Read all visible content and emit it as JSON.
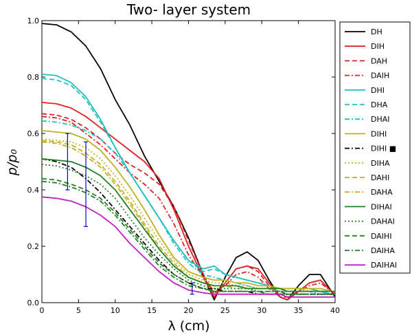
{
  "chart_data": {
    "type": "line",
    "title": "Two- layer system",
    "xlabel": "λ (cm)",
    "ylabel": "p/p₀",
    "xlim": [
      0,
      40
    ],
    "ylim": [
      0,
      1.0
    ],
    "xticks": [
      "0",
      "5",
      "10",
      "15",
      "20",
      "25",
      "30",
      "35",
      "40"
    ],
    "yticks": [
      "0.0",
      "0.2",
      "0.4",
      "0.6",
      "0.8",
      "1.0"
    ],
    "grid": false,
    "legend_position": "right (outside plot)",
    "x": [
      0,
      2,
      4,
      6,
      8,
      10,
      12,
      14,
      16,
      18,
      20,
      22,
      23.5,
      25,
      26.5,
      28,
      29.5,
      31,
      32.5,
      33.5,
      35,
      36.5,
      38,
      39.5,
      40
    ],
    "series": [
      {
        "name": "DH",
        "color": "#000000",
        "style": "solid",
        "values": [
          0.99,
          0.985,
          0.96,
          0.91,
          0.83,
          0.72,
          0.63,
          0.52,
          0.43,
          0.34,
          0.23,
          0.1,
          0.01,
          0.09,
          0.16,
          0.18,
          0.15,
          0.08,
          0.02,
          0.01,
          0.06,
          0.1,
          0.1,
          0.04,
          0.02
        ]
      },
      {
        "name": "DIH",
        "color": "#e02020",
        "style": "solid",
        "values": [
          0.71,
          0.705,
          0.69,
          0.66,
          0.62,
          0.58,
          0.54,
          0.5,
          0.44,
          0.33,
          0.2,
          0.09,
          0.02,
          0.07,
          0.12,
          0.13,
          0.12,
          0.07,
          0.02,
          0.01,
          0.04,
          0.07,
          0.08,
          0.04,
          0.03
        ]
      },
      {
        "name": "DAH",
        "color": "#e02020",
        "style": "dashed",
        "values": [
          0.67,
          0.665,
          0.65,
          0.62,
          0.58,
          0.53,
          0.49,
          0.46,
          0.42,
          0.34,
          0.22,
          0.1,
          0.03,
          0.07,
          0.12,
          0.13,
          0.11,
          0.06,
          0.02,
          0.01,
          0.04,
          0.07,
          0.08,
          0.04,
          0.03
        ]
      },
      {
        "name": "DAIH",
        "color": "#e02020",
        "style": "dashdot",
        "values": [
          0.66,
          0.655,
          0.64,
          0.6,
          0.56,
          0.51,
          0.46,
          0.42,
          0.37,
          0.28,
          0.17,
          0.09,
          0.04,
          0.06,
          0.1,
          0.11,
          0.09,
          0.05,
          0.02,
          0.02,
          0.04,
          0.06,
          0.07,
          0.04,
          0.03
        ]
      },
      {
        "name": "DHI",
        "color": "#20c0c0",
        "style": "solid",
        "values": [
          0.81,
          0.805,
          0.78,
          0.73,
          0.65,
          0.55,
          0.46,
          0.38,
          0.3,
          0.22,
          0.15,
          0.12,
          0.13,
          0.1,
          0.09,
          0.08,
          0.07,
          0.06,
          0.05,
          0.05,
          0.05,
          0.05,
          0.04,
          0.03,
          0.03
        ]
      },
      {
        "name": "DHA",
        "color": "#20c0c0",
        "style": "dashed",
        "values": [
          0.795,
          0.79,
          0.77,
          0.72,
          0.64,
          0.55,
          0.46,
          0.38,
          0.3,
          0.22,
          0.15,
          0.11,
          0.12,
          0.1,
          0.09,
          0.08,
          0.07,
          0.06,
          0.05,
          0.05,
          0.05,
          0.05,
          0.04,
          0.03,
          0.03
        ]
      },
      {
        "name": "DHAI",
        "color": "#20c0c0",
        "style": "dashdot",
        "values": [
          0.645,
          0.64,
          0.63,
          0.61,
          0.58,
          0.53,
          0.46,
          0.38,
          0.3,
          0.21,
          0.14,
          0.1,
          0.09,
          0.08,
          0.07,
          0.06,
          0.05,
          0.05,
          0.04,
          0.04,
          0.04,
          0.04,
          0.03,
          0.03,
          0.03
        ]
      },
      {
        "name": "DIHI",
        "color": "#c0b020",
        "style": "solid",
        "values": [
          0.61,
          0.605,
          0.6,
          0.58,
          0.54,
          0.48,
          0.41,
          0.33,
          0.24,
          0.16,
          0.11,
          0.09,
          0.08,
          0.08,
          0.07,
          0.07,
          0.06,
          0.06,
          0.05,
          0.05,
          0.05,
          0.05,
          0.05,
          0.04,
          0.04
        ]
      },
      {
        "name": "DIHI ■",
        "color": "#000000",
        "style": "dashdot",
        "values": [
          0.51,
          0.5,
          0.48,
          0.44,
          0.39,
          0.33,
          0.27,
          0.21,
          0.15,
          0.1,
          0.07,
          0.05,
          0.05,
          0.04,
          0.04,
          0.04,
          0.03,
          0.03,
          0.03,
          0.03,
          0.03,
          0.03,
          0.03,
          0.03,
          0.03
        ]
      },
      {
        "name": "DIHA",
        "color": "#c0b020",
        "style": "dotted",
        "values": [
          0.58,
          0.575,
          0.57,
          0.55,
          0.51,
          0.45,
          0.38,
          0.3,
          0.22,
          0.15,
          0.1,
          0.08,
          0.07,
          0.07,
          0.06,
          0.06,
          0.05,
          0.05,
          0.05,
          0.05,
          0.05,
          0.04,
          0.04,
          0.04,
          0.04
        ]
      },
      {
        "name": "DAHI",
        "color": "#c0b020",
        "style": "dashed",
        "values": [
          0.575,
          0.57,
          0.56,
          0.53,
          0.49,
          0.43,
          0.36,
          0.28,
          0.2,
          0.14,
          0.09,
          0.07,
          0.06,
          0.06,
          0.06,
          0.05,
          0.05,
          0.05,
          0.05,
          0.04,
          0.04,
          0.04,
          0.04,
          0.04,
          0.04
        ]
      },
      {
        "name": "DAHA",
        "color": "#c0b020",
        "style": "dashdot",
        "values": [
          0.57,
          0.565,
          0.55,
          0.52,
          0.48,
          0.42,
          0.35,
          0.27,
          0.19,
          0.13,
          0.09,
          0.07,
          0.06,
          0.06,
          0.05,
          0.05,
          0.05,
          0.05,
          0.04,
          0.04,
          0.04,
          0.04,
          0.04,
          0.04,
          0.04
        ]
      },
      {
        "name": "DIHAI",
        "color": "#208020",
        "style": "solid",
        "values": [
          0.51,
          0.505,
          0.5,
          0.48,
          0.45,
          0.4,
          0.33,
          0.26,
          0.19,
          0.13,
          0.09,
          0.07,
          0.06,
          0.06,
          0.06,
          0.05,
          0.05,
          0.05,
          0.05,
          0.04,
          0.04,
          0.04,
          0.04,
          0.04,
          0.04
        ]
      },
      {
        "name": "DAHAI",
        "color": "#208020",
        "style": "dotted",
        "values": [
          0.49,
          0.485,
          0.47,
          0.45,
          0.42,
          0.37,
          0.3,
          0.23,
          0.17,
          0.12,
          0.08,
          0.06,
          0.05,
          0.05,
          0.05,
          0.05,
          0.04,
          0.04,
          0.04,
          0.04,
          0.04,
          0.04,
          0.04,
          0.04,
          0.04
        ]
      },
      {
        "name": "DAIHI",
        "color": "#208020",
        "style": "dashed",
        "values": [
          0.44,
          0.435,
          0.42,
          0.4,
          0.37,
          0.32,
          0.26,
          0.2,
          0.14,
          0.1,
          0.07,
          0.05,
          0.04,
          0.04,
          0.04,
          0.04,
          0.04,
          0.04,
          0.04,
          0.03,
          0.03,
          0.03,
          0.03,
          0.03,
          0.03
        ]
      },
      {
        "name": "DAIHA",
        "color": "#208020",
        "style": "dashdot",
        "values": [
          0.43,
          0.425,
          0.41,
          0.39,
          0.36,
          0.31,
          0.25,
          0.19,
          0.13,
          0.09,
          0.06,
          0.05,
          0.04,
          0.04,
          0.04,
          0.04,
          0.04,
          0.03,
          0.03,
          0.03,
          0.03,
          0.03,
          0.03,
          0.03,
          0.03
        ]
      },
      {
        "name": "DAIHAI",
        "color": "#c020c0",
        "style": "solid",
        "values": [
          0.375,
          0.37,
          0.36,
          0.34,
          0.31,
          0.27,
          0.21,
          0.16,
          0.11,
          0.07,
          0.045,
          0.035,
          0.03,
          0.03,
          0.03,
          0.03,
          0.03,
          0.03,
          0.03,
          0.02,
          0.02,
          0.02,
          0.02,
          0.02,
          0.02
        ]
      }
    ],
    "error_bars": [
      {
        "x": 3.5,
        "low": 0.4,
        "high": 0.6,
        "color": "#0000cc"
      },
      {
        "x": 6.0,
        "low": 0.27,
        "high": 0.57,
        "color": "#0000cc"
      },
      {
        "x": 20.5,
        "low": 0.03,
        "high": 0.07,
        "color": "#0000cc"
      }
    ]
  }
}
